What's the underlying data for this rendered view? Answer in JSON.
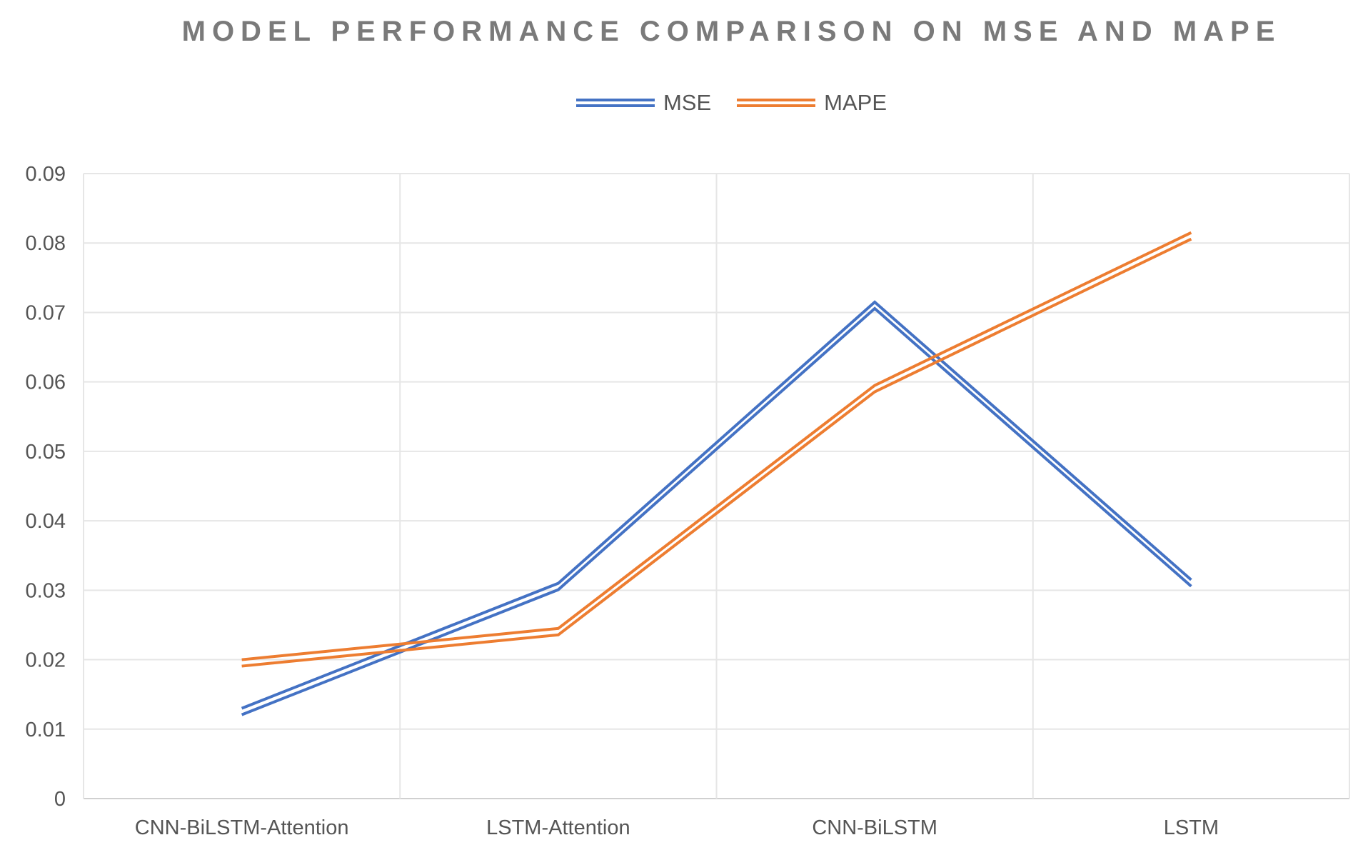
{
  "chart_data": {
    "type": "line",
    "title": "MODEL PERFORMANCE COMPARISON ON MSE AND MAPE",
    "categories": [
      "CNN-BiLSTM-Attention",
      "LSTM-Attention",
      "CNN-BiLSTM",
      "LSTM"
    ],
    "series": [
      {
        "name": "MSE",
        "color": "#4472c4",
        "values": [
          0.013,
          0.031,
          0.0715,
          0.0315
        ]
      },
      {
        "name": "MAPE",
        "color": "#ed7d31",
        "values": [
          0.02,
          0.0245,
          0.0595,
          0.0815
        ]
      }
    ],
    "ylim": [
      0,
      0.09
    ],
    "yticks": [
      "0",
      "0.01",
      "0.02",
      "0.03",
      "0.04",
      "0.05",
      "0.06",
      "0.07",
      "0.08",
      "0.09"
    ],
    "ytick_values": [
      0,
      0.01,
      0.02,
      0.03,
      0.04,
      0.05,
      0.06,
      0.07,
      0.08,
      0.09
    ],
    "xlabel": "",
    "ylabel": "",
    "legend": "top-center",
    "grid": true
  }
}
